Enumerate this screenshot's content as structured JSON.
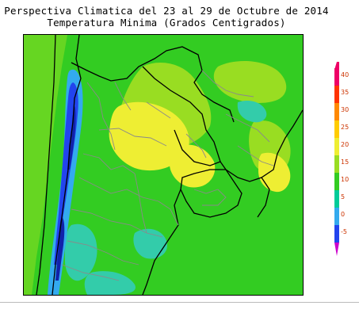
{
  "title": {
    "line1": "Perspectiva Climatica del 23 al 29 de Octubre de 2014",
    "line2": "Temperatura Minima (Grados Centigrados)"
  },
  "legend": {
    "ticks": [
      "40",
      "35",
      "30",
      "25",
      "20",
      "15",
      "10",
      "5",
      "0",
      "-5"
    ],
    "colors": [
      "#ee0066",
      "#ff3300",
      "#ff8800",
      "#ffcc00",
      "#eeee33",
      "#99dd22",
      "#33cc22",
      "#00cc99",
      "#33aaee",
      "#2244ee",
      "#cc00cc"
    ]
  },
  "map": {
    "palette": {
      "green": "#33cc22",
      "light_green": "#99dd22",
      "yellow": "#eeee33",
      "cyan": "#33ccaa",
      "light_blue": "#33aaee",
      "blue": "#2244ee",
      "dark_blue": "#1122aa",
      "border_black": "#000000",
      "border_gray": "#888888"
    }
  }
}
